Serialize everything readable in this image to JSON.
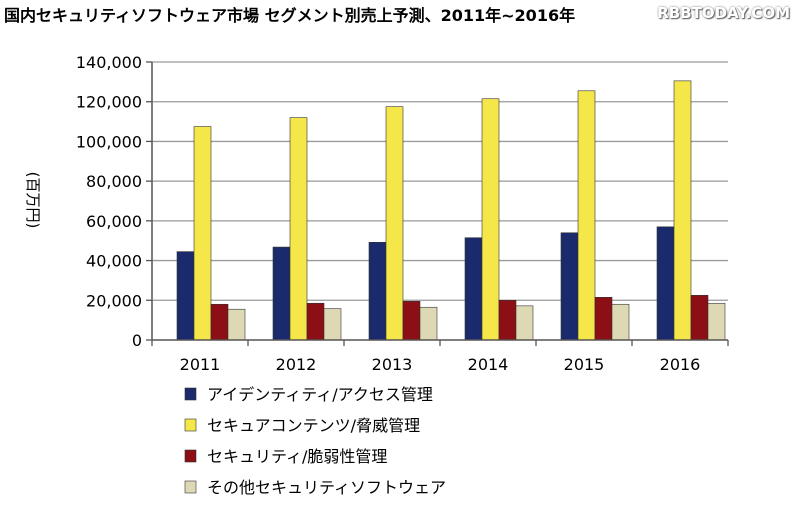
{
  "header": {
    "title": "国内セキュリティソフトウェア市場 セグメント別売上予測、2011年~2016年",
    "watermark": "RBBTODAY.COM"
  },
  "colors": {
    "series": [
      "#1a2a6c",
      "#f5e64a",
      "#8b0f14",
      "#ddd9b4"
    ],
    "grid": "#9a9a9a",
    "axis": "#555555"
  },
  "chart_data": {
    "type": "bar",
    "title": "国内セキュリティソフトウェア市場 セグメント別売上予測、2011年~2016年",
    "xlabel": "",
    "ylabel": "(百万円)",
    "ylim": [
      0,
      140000
    ],
    "yticks": [
      0,
      20000,
      40000,
      60000,
      80000,
      100000,
      120000,
      140000
    ],
    "ytick_labels": [
      "0",
      "20,000",
      "40,000",
      "60,000",
      "80,000",
      "100,000",
      "120,000",
      "140,000"
    ],
    "grid": true,
    "legend_position": "bottom-center",
    "categories": [
      "2011",
      "2012",
      "2013",
      "2014",
      "2015",
      "2016"
    ],
    "series": [
      {
        "name": "アイデンティティ/アクセス管理",
        "values": [
          44500,
          46800,
          49200,
          51500,
          54000,
          57000
        ]
      },
      {
        "name": "セキュアコンテンツ/脅威管理",
        "values": [
          107500,
          112000,
          117500,
          121500,
          125500,
          130500
        ]
      },
      {
        "name": "セキュリティ/脆弱性管理",
        "values": [
          18000,
          18500,
          19500,
          20000,
          21500,
          22500
        ]
      },
      {
        "name": "その他セキュリティソフトウェア",
        "values": [
          15500,
          15800,
          16500,
          17200,
          18000,
          18500
        ]
      }
    ]
  }
}
